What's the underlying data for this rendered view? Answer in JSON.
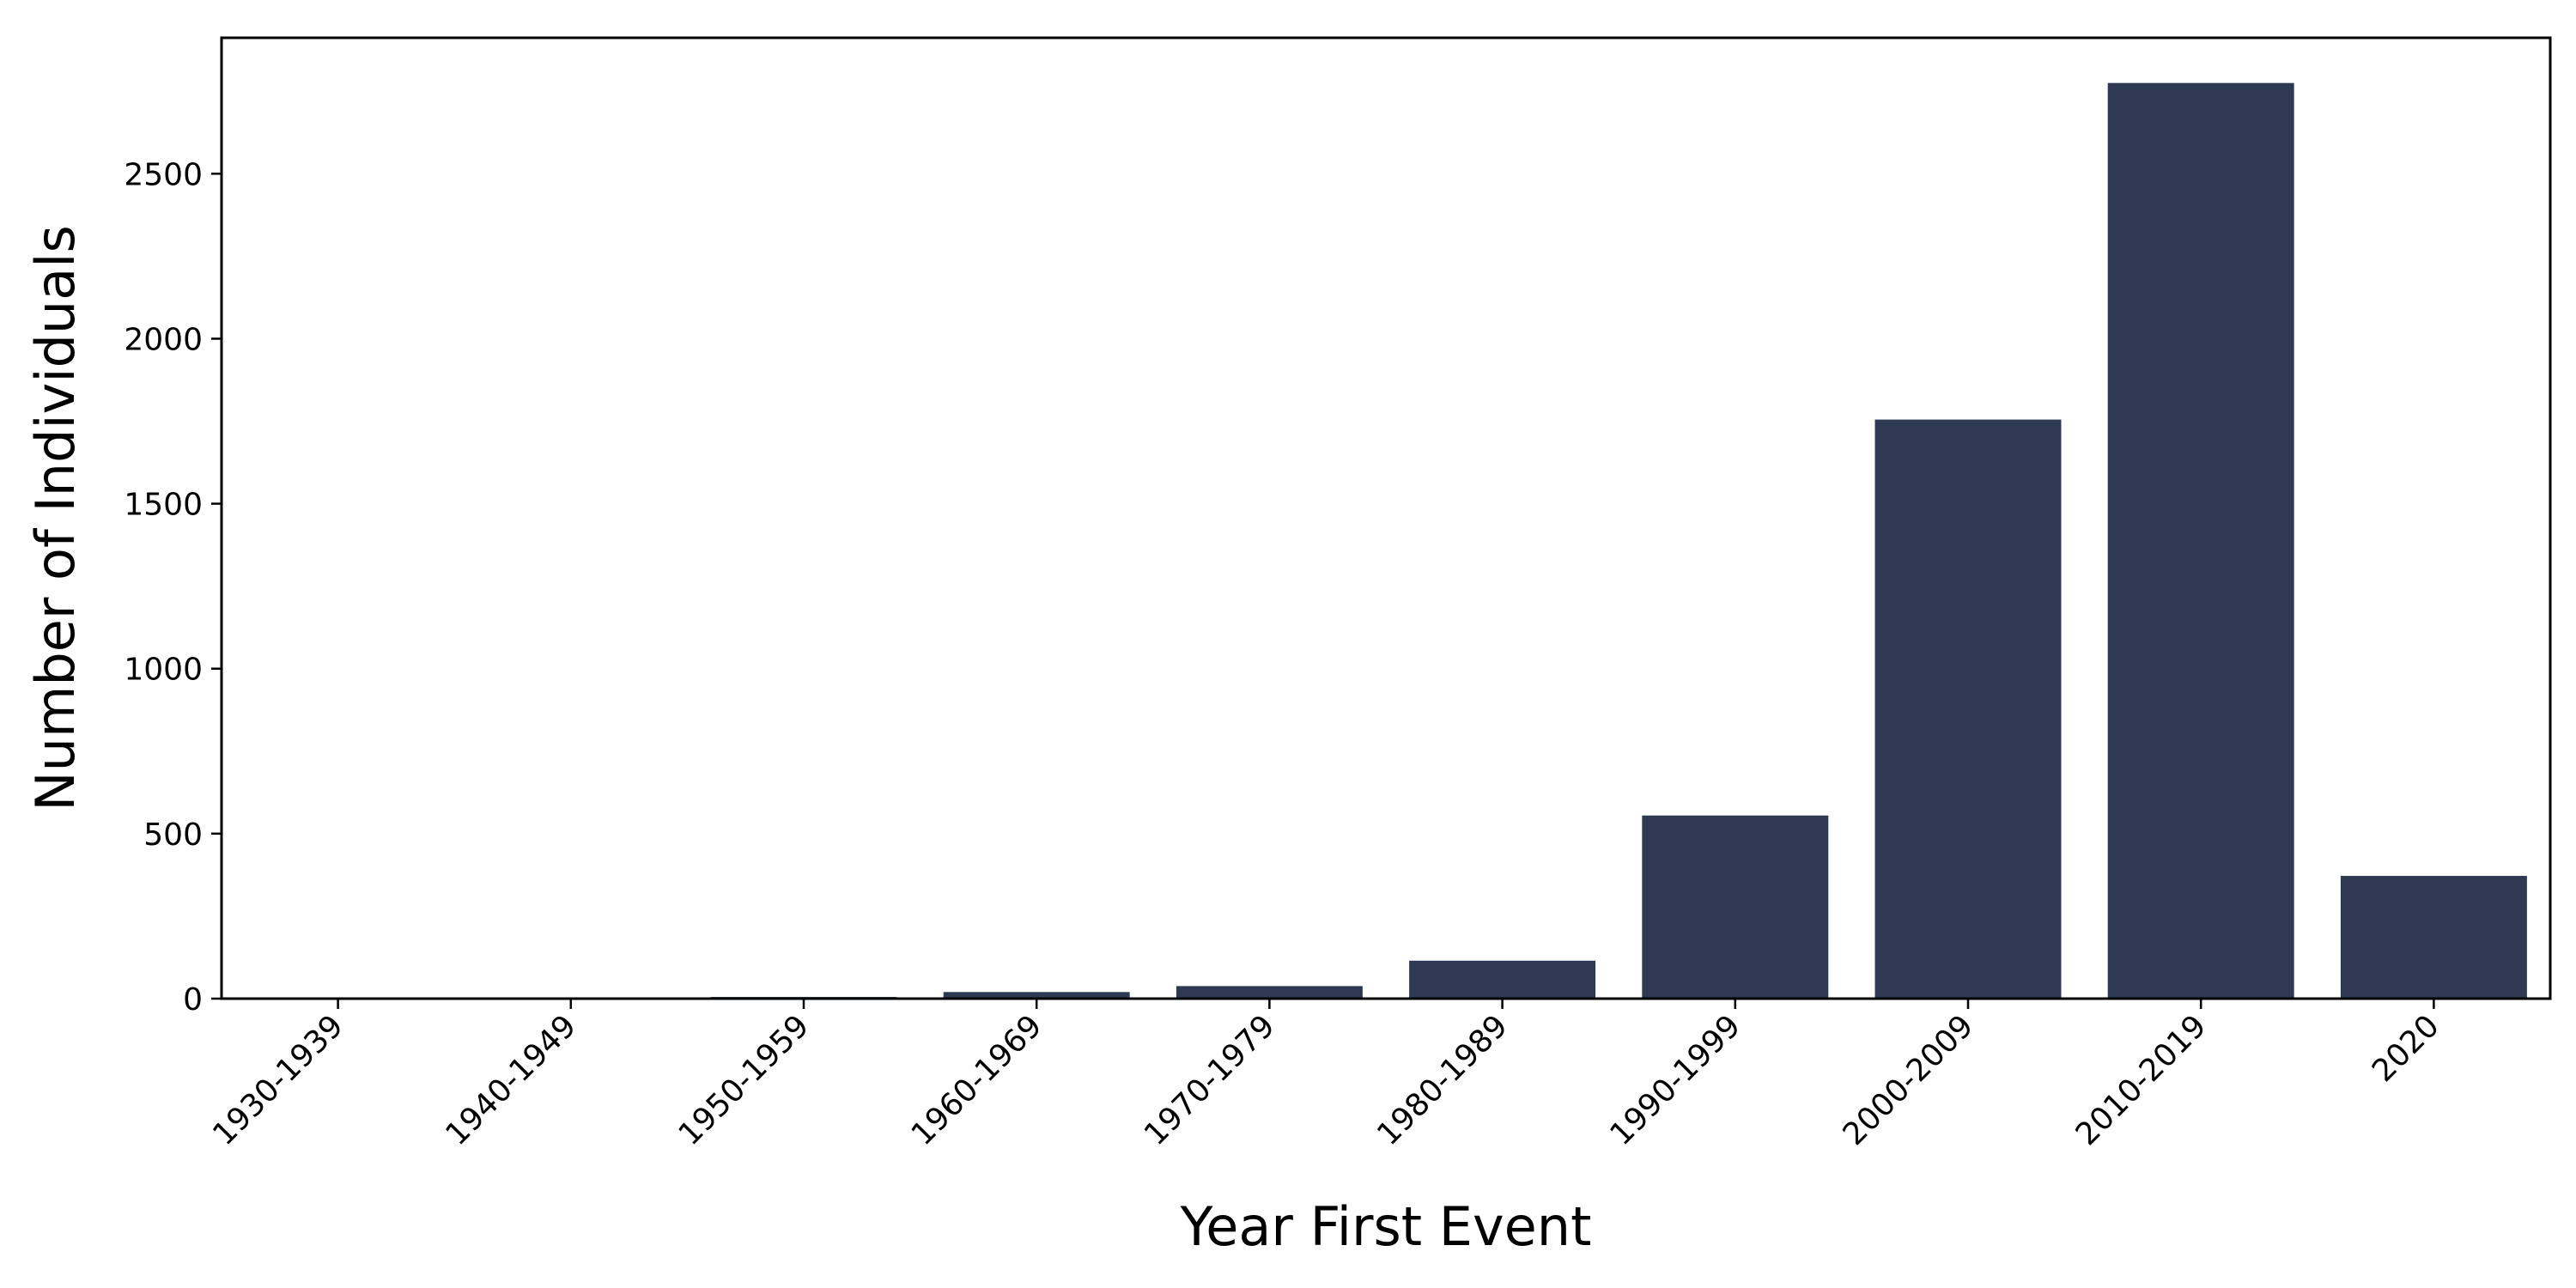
{
  "chart_data": {
    "type": "bar",
    "title": "",
    "xlabel": "Year First Event",
    "ylabel": "Number of Individuals",
    "categories": [
      "1930-1939",
      "1940-1949",
      "1950-1959",
      "1960-1969",
      "1970-1979",
      "1980-1989",
      "1990-1999",
      "2000-2009",
      "2010-2019",
      "2020"
    ],
    "values": [
      1,
      1,
      5,
      20,
      38,
      115,
      555,
      1755,
      2775,
      372
    ],
    "ylim": [
      0,
      2912
    ],
    "yticks": [
      0,
      500,
      1000,
      1500,
      2000,
      2500
    ],
    "bar_color": "#2d3a52",
    "grid": false,
    "legend": "none"
  }
}
